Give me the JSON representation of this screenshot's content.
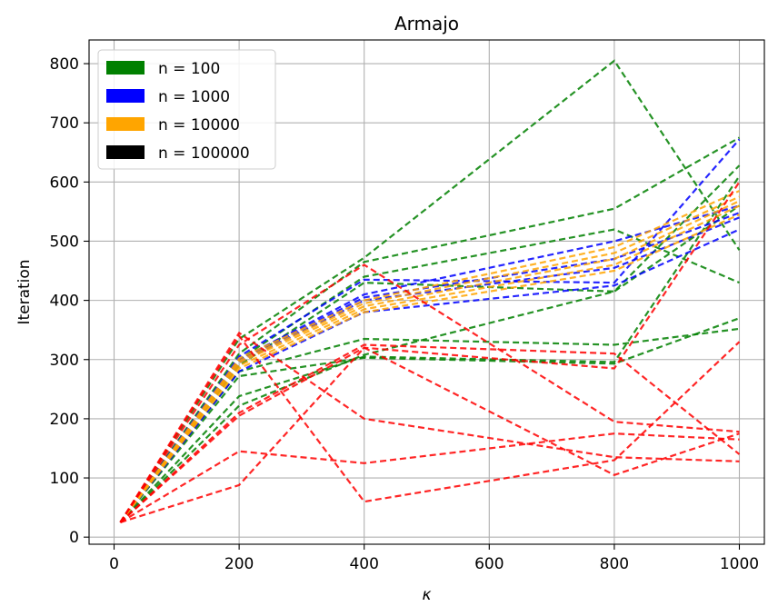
{
  "chart_data": {
    "type": "line",
    "title": "Armajo",
    "xlabel": "κ",
    "ylabel": "Iteration",
    "xlim": [
      -40,
      1040
    ],
    "ylim": [
      -12,
      840
    ],
    "xticks": [
      0,
      200,
      400,
      600,
      800,
      1000
    ],
    "yticks": [
      0,
      100,
      200,
      300,
      400,
      500,
      600,
      700,
      800
    ],
    "grid": true,
    "line_style": "dashed",
    "legend_position": "top-left",
    "legend": [
      {
        "label": "n = 100",
        "color": "#008000"
      },
      {
        "label": "n = 1000",
        "color": "#0000ff"
      },
      {
        "label": "n = 10000",
        "color": "#ffa500"
      },
      {
        "label": "n = 100000",
        "color": "#000000"
      }
    ],
    "x": [
      10,
      200,
      400,
      800,
      1000
    ],
    "series": [
      {
        "color": "#008000",
        "values": [
          25,
          335,
          472,
          805,
          485
        ]
      },
      {
        "color": "#008000",
        "values": [
          25,
          310,
          465,
          555,
          675
        ]
      },
      {
        "color": "#008000",
        "values": [
          25,
          300,
          440,
          520,
          430
        ]
      },
      {
        "color": "#008000",
        "values": [
          25,
          290,
          430,
          415,
          628
        ]
      },
      {
        "color": "#008000",
        "values": [
          25,
          280,
          335,
          325,
          352
        ]
      },
      {
        "color": "#008000",
        "values": [
          25,
          272,
          303,
          293,
          370
        ]
      },
      {
        "color": "#008000",
        "values": [
          25,
          238,
          305,
          296,
          610
        ]
      },
      {
        "color": "#008000",
        "values": [
          25,
          222,
          308,
          415,
          560
        ]
      },
      {
        "color": "#0000ff",
        "values": [
          25,
          305,
          435,
          430,
          672
        ]
      },
      {
        "color": "#0000ff",
        "values": [
          25,
          300,
          410,
          500,
          560
        ]
      },
      {
        "color": "#0000ff",
        "values": [
          25,
          298,
          405,
          470,
          548
        ]
      },
      {
        "color": "#0000ff",
        "values": [
          25,
          295,
          400,
          455,
          540
        ]
      },
      {
        "color": "#0000ff",
        "values": [
          25,
          280,
          380,
          425,
          520
        ]
      },
      {
        "color": "#ffa500",
        "values": [
          25,
          302,
          400,
          490,
          585
        ]
      },
      {
        "color": "#ffa500",
        "values": [
          25,
          298,
          395,
          480,
          575
        ]
      },
      {
        "color": "#ffa500",
        "values": [
          25,
          295,
          390,
          470,
          568
        ]
      },
      {
        "color": "#ffa500",
        "values": [
          25,
          290,
          385,
          460,
          560
        ]
      },
      {
        "color": "#ffa500",
        "values": [
          25,
          285,
          380,
          450,
          545
        ]
      },
      {
        "color": "#ff0000",
        "values": [
          25,
          345,
          200,
          135,
          128
        ]
      },
      {
        "color": "#ff0000",
        "values": [
          25,
          340,
          60,
          130,
          330
        ]
      },
      {
        "color": "#ff0000",
        "values": [
          25,
          325,
          460,
          195,
          178
        ]
      },
      {
        "color": "#ff0000",
        "values": [
          25,
          210,
          325,
          310,
          140
        ]
      },
      {
        "color": "#ff0000",
        "values": [
          25,
          205,
          320,
          285,
          600
        ]
      },
      {
        "color": "#ff0000",
        "values": [
          25,
          145,
          125,
          175,
          165
        ]
      },
      {
        "color": "#ff0000",
        "values": [
          25,
          88,
          320,
          105,
          175
        ]
      }
    ]
  }
}
